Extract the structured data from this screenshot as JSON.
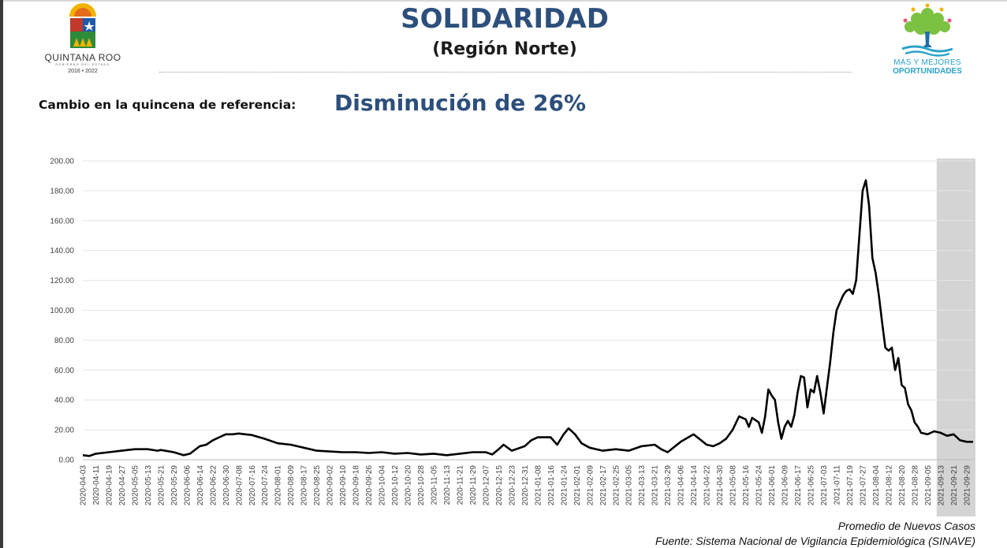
{
  "header": {
    "title": "SOLIDARIDAD",
    "subtitle": "(Región Norte)",
    "logo_left": {
      "name": "QUINTANA ROO",
      "sub": "GOBIERNO DEL ESTADO",
      "years": "2016 • 2022"
    },
    "logo_right": {
      "line1": "MÁS Y MEJORES",
      "line2": "OPORTUNIDADES"
    }
  },
  "summary": {
    "label": "Cambio en la quincena de referencia:",
    "value": "Disminución de 26%"
  },
  "footer": {
    "note": "Promedio de Nuevos Casos",
    "source": "Fuente: Sistema Nacional de Vigilancia Epidemiológica (SINAVE)"
  },
  "colors": {
    "title": "#2d4f7c",
    "line": "#000000",
    "highlight": "#d4d4d4",
    "grid": "#e6e6e6"
  },
  "chart_data": {
    "type": "line",
    "title": "",
    "xlabel": "",
    "ylabel": "",
    "ylim": [
      0,
      200
    ],
    "yticks": [
      "0.00",
      "20.00",
      "40.00",
      "60.00",
      "80.00",
      "100.00",
      "120.00",
      "140.00",
      "160.00",
      "180.00",
      "200.00"
    ],
    "grid": "horizontal",
    "x_tick_labels": [
      "2020-04-03",
      "2020-04-11",
      "2020-04-19",
      "2020-04-27",
      "2020-05-05",
      "2020-05-13",
      "2020-05-21",
      "2020-05-29",
      "2020-06-06",
      "2020-06-14",
      "2020-06-22",
      "2020-06-30",
      "2020-07-08",
      "2020-07-16",
      "2020-07-24",
      "2020-08-01",
      "2020-08-09",
      "2020-08-17",
      "2020-08-25",
      "2020-09-02",
      "2020-09-10",
      "2020-09-18",
      "2020-09-26",
      "2020-10-04",
      "2020-10-12",
      "2020-10-20",
      "2020-10-28",
      "2020-11-05",
      "2020-11-13",
      "2020-11-21",
      "2020-11-29",
      "2020-12-07",
      "2020-12-15",
      "2020-12-23",
      "2020-12-31",
      "2021-01-08",
      "2021-01-16",
      "2021-01-24",
      "2021-02-01",
      "2021-02-09",
      "2021-02-17",
      "2021-02-25",
      "2021-03-05",
      "2021-03-13",
      "2021-03-21",
      "2021-03-29",
      "2021-04-06",
      "2021-04-14",
      "2021-04-22",
      "2021-04-30",
      "2021-05-08",
      "2021-05-16",
      "2021-05-24",
      "2021-06-01",
      "2021-06-09",
      "2021-06-17",
      "2021-06-25",
      "2021-07-03",
      "2021-07-11",
      "2021-07-19",
      "2021-07-27",
      "2021-08-04",
      "2021-08-12",
      "2021-08-20",
      "2021-08-28",
      "2021-09-05",
      "2021-09-13",
      "2021-09-21",
      "2021-09-29"
    ],
    "highlight_range": [
      "2021-09-13",
      "2021-10-03"
    ],
    "series": [
      {
        "name": "",
        "points": [
          [
            "2020-04-03",
            3
          ],
          [
            "2020-04-07",
            2.5
          ],
          [
            "2020-04-11",
            4
          ],
          [
            "2020-04-19",
            5
          ],
          [
            "2020-04-27",
            6
          ],
          [
            "2020-05-05",
            7
          ],
          [
            "2020-05-13",
            7
          ],
          [
            "2020-05-19",
            6
          ],
          [
            "2020-05-21",
            6.5
          ],
          [
            "2020-05-29",
            5
          ],
          [
            "2020-06-04",
            3
          ],
          [
            "2020-06-08",
            4
          ],
          [
            "2020-06-14",
            9
          ],
          [
            "2020-06-18",
            10
          ],
          [
            "2020-06-22",
            13
          ],
          [
            "2020-06-26",
            15
          ],
          [
            "2020-06-30",
            17
          ],
          [
            "2020-07-04",
            17
          ],
          [
            "2020-07-08",
            17.5
          ],
          [
            "2020-07-12",
            17
          ],
          [
            "2020-07-16",
            16.5
          ],
          [
            "2020-07-24",
            14
          ],
          [
            "2020-08-01",
            11
          ],
          [
            "2020-08-09",
            10
          ],
          [
            "2020-08-17",
            8
          ],
          [
            "2020-08-25",
            6
          ],
          [
            "2020-09-02",
            5.5
          ],
          [
            "2020-09-10",
            5
          ],
          [
            "2020-09-18",
            5
          ],
          [
            "2020-09-26",
            4.5
          ],
          [
            "2020-10-04",
            5
          ],
          [
            "2020-10-12",
            4
          ],
          [
            "2020-10-20",
            4.5
          ],
          [
            "2020-10-28",
            3.5
          ],
          [
            "2020-11-05",
            4
          ],
          [
            "2020-11-13",
            3
          ],
          [
            "2020-11-21",
            4
          ],
          [
            "2020-11-29",
            5
          ],
          [
            "2020-12-07",
            5
          ],
          [
            "2020-12-11",
            3.5
          ],
          [
            "2020-12-15",
            7
          ],
          [
            "2020-12-18",
            10
          ],
          [
            "2020-12-23",
            6
          ],
          [
            "2020-12-31",
            9
          ],
          [
            "2021-01-04",
            13
          ],
          [
            "2021-01-08",
            15
          ],
          [
            "2021-01-16",
            15
          ],
          [
            "2021-01-20",
            10
          ],
          [
            "2021-01-24",
            17
          ],
          [
            "2021-01-27",
            21
          ],
          [
            "2021-01-31",
            17
          ],
          [
            "2021-02-04",
            11
          ],
          [
            "2021-02-09",
            8
          ],
          [
            "2021-02-17",
            6
          ],
          [
            "2021-02-25",
            7
          ],
          [
            "2021-03-05",
            6
          ],
          [
            "2021-03-13",
            9
          ],
          [
            "2021-03-21",
            10
          ],
          [
            "2021-03-25",
            7
          ],
          [
            "2021-03-29",
            5
          ],
          [
            "2021-04-06",
            12
          ],
          [
            "2021-04-14",
            17
          ],
          [
            "2021-04-22",
            10
          ],
          [
            "2021-04-26",
            9
          ],
          [
            "2021-04-30",
            11
          ],
          [
            "2021-05-04",
            14
          ],
          [
            "2021-05-08",
            20
          ],
          [
            "2021-05-12",
            29
          ],
          [
            "2021-05-16",
            27
          ],
          [
            "2021-05-18",
            22
          ],
          [
            "2021-05-20",
            28
          ],
          [
            "2021-05-24",
            25
          ],
          [
            "2021-05-26",
            18
          ],
          [
            "2021-05-28",
            29
          ],
          [
            "2021-05-30",
            47
          ],
          [
            "2021-06-01",
            43
          ],
          [
            "2021-06-03",
            40
          ],
          [
            "2021-06-05",
            25
          ],
          [
            "2021-06-07",
            14
          ],
          [
            "2021-06-09",
            22
          ],
          [
            "2021-06-11",
            26
          ],
          [
            "2021-06-13",
            22
          ],
          [
            "2021-06-15",
            30
          ],
          [
            "2021-06-17",
            45
          ],
          [
            "2021-06-19",
            56
          ],
          [
            "2021-06-21",
            55
          ],
          [
            "2021-06-23",
            35
          ],
          [
            "2021-06-25",
            47
          ],
          [
            "2021-06-27",
            45
          ],
          [
            "2021-06-29",
            56
          ],
          [
            "2021-07-01",
            45
          ],
          [
            "2021-07-03",
            31
          ],
          [
            "2021-07-05",
            48
          ],
          [
            "2021-07-07",
            65
          ],
          [
            "2021-07-09",
            85
          ],
          [
            "2021-07-11",
            100
          ],
          [
            "2021-07-15",
            110
          ],
          [
            "2021-07-17",
            113
          ],
          [
            "2021-07-19",
            114
          ],
          [
            "2021-07-21",
            111
          ],
          [
            "2021-07-23",
            120
          ],
          [
            "2021-07-25",
            150
          ],
          [
            "2021-07-27",
            180
          ],
          [
            "2021-07-29",
            187
          ],
          [
            "2021-07-31",
            170
          ],
          [
            "2021-08-02",
            135
          ],
          [
            "2021-08-04",
            125
          ],
          [
            "2021-08-06",
            110
          ],
          [
            "2021-08-08",
            92
          ],
          [
            "2021-08-10",
            75
          ],
          [
            "2021-08-12",
            73
          ],
          [
            "2021-08-14",
            75
          ],
          [
            "2021-08-16",
            60
          ],
          [
            "2021-08-18",
            68
          ],
          [
            "2021-08-20",
            50
          ],
          [
            "2021-08-22",
            48
          ],
          [
            "2021-08-24",
            37
          ],
          [
            "2021-08-26",
            33
          ],
          [
            "2021-08-28",
            25
          ],
          [
            "2021-08-30",
            22
          ],
          [
            "2021-09-01",
            18
          ],
          [
            "2021-09-05",
            17
          ],
          [
            "2021-09-09",
            19
          ],
          [
            "2021-09-13",
            18
          ],
          [
            "2021-09-17",
            16
          ],
          [
            "2021-09-21",
            17
          ],
          [
            "2021-09-25",
            13
          ],
          [
            "2021-09-29",
            12
          ],
          [
            "2021-10-03",
            12
          ]
        ]
      }
    ]
  }
}
